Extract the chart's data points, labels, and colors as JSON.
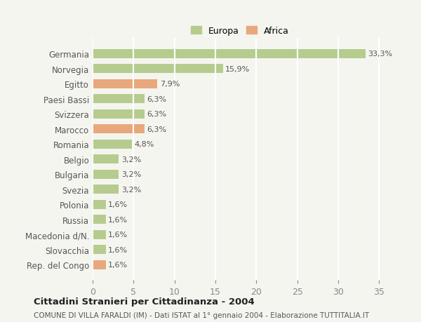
{
  "countries": [
    "Germania",
    "Norvegia",
    "Egitto",
    "Paesi Bassi",
    "Svizzera",
    "Marocco",
    "Romania",
    "Belgio",
    "Bulgaria",
    "Svezia",
    "Polonia",
    "Russia",
    "Macedonia d/N.",
    "Slovacchia",
    "Rep. del Congo"
  ],
  "values": [
    33.3,
    15.9,
    7.9,
    6.3,
    6.3,
    6.3,
    4.8,
    3.2,
    3.2,
    3.2,
    1.6,
    1.6,
    1.6,
    1.6,
    1.6
  ],
  "labels": [
    "33,3%",
    "15,9%",
    "7,9%",
    "6,3%",
    "6,3%",
    "6,3%",
    "4,8%",
    "3,2%",
    "3,2%",
    "3,2%",
    "1,6%",
    "1,6%",
    "1,6%",
    "1,6%",
    "1,6%"
  ],
  "continents": [
    "Europa",
    "Europa",
    "Africa",
    "Europa",
    "Europa",
    "Africa",
    "Europa",
    "Europa",
    "Europa",
    "Europa",
    "Europa",
    "Europa",
    "Europa",
    "Europa",
    "Africa"
  ],
  "color_europa": "#b5cc8e",
  "color_africa": "#e8a87c",
  "background_color": "#f5f5f0",
  "grid_color": "#ffffff",
  "title": "Cittadini Stranieri per Cittadinanza - 2004",
  "subtitle": "COMUNE DI VILLA FARALDI (IM) - Dati ISTAT al 1° gennaio 2004 - Elaborazione TUTTITALIA.IT",
  "xlim": [
    0,
    36
  ],
  "xticks": [
    0,
    5,
    10,
    15,
    20,
    25,
    30,
    35
  ]
}
